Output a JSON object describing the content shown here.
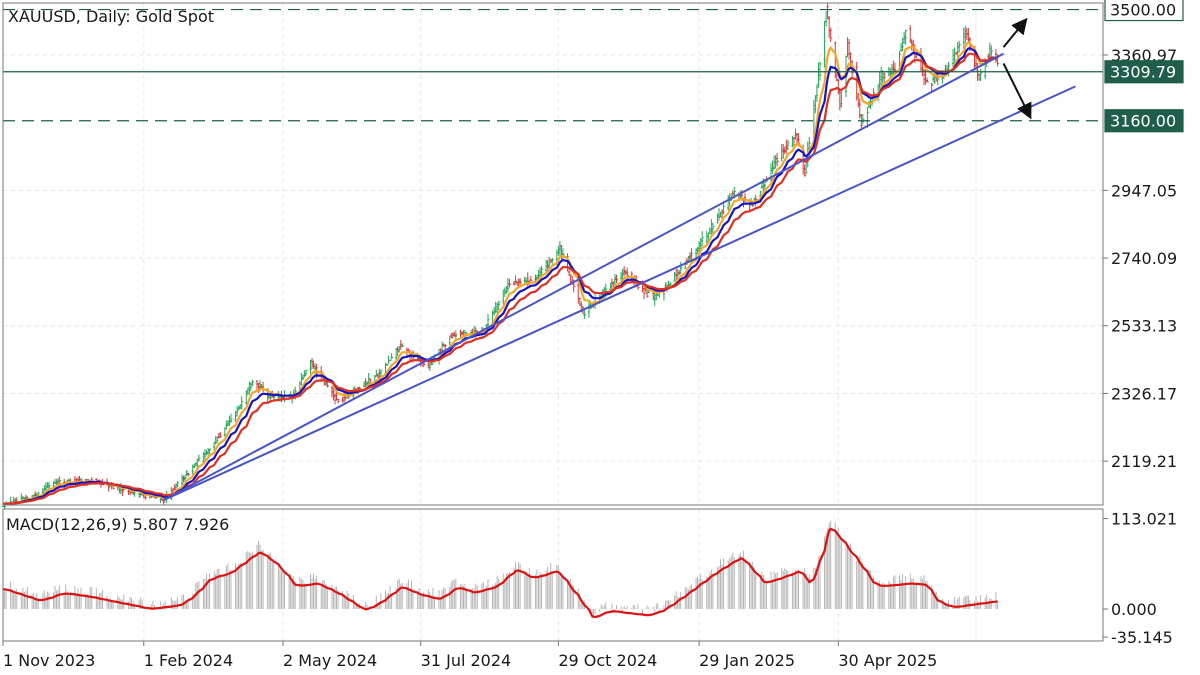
{
  "header": {
    "title": "XAUUSD, Daily:  Gold Spot"
  },
  "colors": {
    "bull": "#26a65b",
    "bear": "#d43c3c",
    "ema_fast": "#f5a623",
    "ema_mid": "#1515c8",
    "ema_slow": "#e03020",
    "trend": "#4a55c8",
    "level": "#1e5e4a",
    "macd_line": "#dd1111",
    "hist": "#b5b5b5",
    "grid": "#e6e6e6"
  },
  "chart_data": [
    {
      "type": "candlestick",
      "title": "XAUUSD, Daily:  Gold Spot",
      "ylim": [
        1985,
        3520
      ],
      "y_ticks": [
        "3360.97",
        "2947.05",
        "2740.09",
        "2533.13",
        "2326.17",
        "2119.21"
      ],
      "x_ticks": [
        "1 Nov 2023",
        "1 Feb 2024",
        "2 May 2024",
        "31 Jul 2024",
        "29 Oct 2024",
        "29 Jan 2025",
        "30 Apr 2025"
      ],
      "x_range": [
        "2023-11-01",
        "2025-10-20"
      ],
      "price_anchors": [
        [
          "2023-11-01",
          1985
        ],
        [
          "2023-11-20",
          2010
        ],
        [
          "2023-12-04",
          2055
        ],
        [
          "2023-12-28",
          2060
        ],
        [
          "2024-01-20",
          2030
        ],
        [
          "2024-02-14",
          2000
        ],
        [
          "2024-03-01",
          2085
        ],
        [
          "2024-03-15",
          2160
        ],
        [
          "2024-04-01",
          2265
        ],
        [
          "2024-04-12",
          2370
        ],
        [
          "2024-04-22",
          2320
        ],
        [
          "2024-05-08",
          2315
        ],
        [
          "2024-05-20",
          2420
        ],
        [
          "2024-06-07",
          2300
        ],
        [
          "2024-06-20",
          2345
        ],
        [
          "2024-07-05",
          2390
        ],
        [
          "2024-07-17",
          2470
        ],
        [
          "2024-08-05",
          2410
        ],
        [
          "2024-08-20",
          2505
        ],
        [
          "2024-09-10",
          2520
        ],
        [
          "2024-09-26",
          2660
        ],
        [
          "2024-10-15",
          2680
        ],
        [
          "2024-10-30",
          2770
        ],
        [
          "2024-11-14",
          2570
        ],
        [
          "2024-11-25",
          2625
        ],
        [
          "2024-12-10",
          2700
        ],
        [
          "2024-12-30",
          2615
        ],
        [
          "2025-01-15",
          2695
        ],
        [
          "2025-02-01",
          2800
        ],
        [
          "2025-02-20",
          2940
        ],
        [
          "2025-03-05",
          2905
        ],
        [
          "2025-03-20",
          3040
        ],
        [
          "2025-04-02",
          3120
        ],
        [
          "2025-04-08",
          3000
        ],
        [
          "2025-04-15",
          3230
        ],
        [
          "2025-04-22",
          3500
        ],
        [
          "2025-05-01",
          3210
        ],
        [
          "2025-05-06",
          3400
        ],
        [
          "2025-05-15",
          3150
        ],
        [
          "2025-05-28",
          3300
        ],
        [
          "2025-06-06",
          3320
        ],
        [
          "2025-06-13",
          3440
        ],
        [
          "2025-06-27",
          3270
        ],
        [
          "2025-07-09",
          3310
        ],
        [
          "2025-07-22",
          3430
        ],
        [
          "2025-07-31",
          3290
        ],
        [
          "2025-08-07",
          3375
        ],
        [
          "2025-08-12",
          3345
        ]
      ],
      "ema_periods": [
        8,
        13,
        21
      ],
      "levels": [
        3500.0,
        3309.79,
        3160.0
      ],
      "level_labels": [
        "3500.00",
        "3309.79",
        "3160.00"
      ],
      "trendlines": [
        {
          "from": [
            "2024-02-14",
            2000
          ],
          "to": [
            "2025-08-16",
            3365
          ]
        },
        {
          "from": [
            "2024-02-14",
            2000
          ],
          "to": [
            "2025-10-02",
            3265
          ]
        }
      ],
      "arrows": [
        {
          "from": [
            "2025-08-16",
            3385
          ],
          "to": [
            "2025-08-30",
            3465
          ]
        },
        {
          "from": [
            "2025-08-16",
            3335
          ],
          "to": [
            "2025-09-02",
            3175
          ]
        }
      ]
    },
    {
      "type": "macd",
      "label": "MACD(12,26,9) 5.807 7.926",
      "ylim": [
        -40,
        125
      ],
      "y_ticks": [
        "113.021",
        "0.000",
        "-35.145"
      ],
      "signal_anchors": [
        [
          "2023-11-01",
          25
        ],
        [
          "2023-11-25",
          10
        ],
        [
          "2023-12-10",
          20
        ],
        [
          "2023-12-28",
          15
        ],
        [
          "2024-01-15",
          8
        ],
        [
          "2024-02-05",
          0
        ],
        [
          "2024-02-25",
          5
        ],
        [
          "2024-03-05",
          18
        ],
        [
          "2024-03-15",
          38
        ],
        [
          "2024-03-28",
          45
        ],
        [
          "2024-04-16",
          72
        ],
        [
          "2024-04-28",
          55
        ],
        [
          "2024-05-10",
          28
        ],
        [
          "2024-05-24",
          32
        ],
        [
          "2024-06-08",
          18
        ],
        [
          "2024-06-24",
          -2
        ],
        [
          "2024-07-04",
          8
        ],
        [
          "2024-07-18",
          28
        ],
        [
          "2024-07-30",
          18
        ],
        [
          "2024-08-12",
          12
        ],
        [
          "2024-08-24",
          28
        ],
        [
          "2024-09-03",
          20
        ],
        [
          "2024-09-18",
          28
        ],
        [
          "2024-10-01",
          50
        ],
        [
          "2024-10-12",
          38
        ],
        [
          "2024-10-28",
          48
        ],
        [
          "2024-11-14",
          5
        ],
        [
          "2024-11-20",
          -12
        ],
        [
          "2024-12-01",
          -2
        ],
        [
          "2024-12-12",
          -5
        ],
        [
          "2024-12-26",
          -8
        ],
        [
          "2025-01-05",
          -2
        ],
        [
          "2025-01-20",
          18
        ],
        [
          "2025-02-08",
          45
        ],
        [
          "2025-02-25",
          65
        ],
        [
          "2025-03-12",
          32
        ],
        [
          "2025-03-22",
          38
        ],
        [
          "2025-04-05",
          48
        ],
        [
          "2025-04-12",
          28
        ],
        [
          "2025-04-24",
          105
        ],
        [
          "2025-05-04",
          80
        ],
        [
          "2025-05-14",
          55
        ],
        [
          "2025-05-24",
          28
        ],
        [
          "2025-06-06",
          30
        ],
        [
          "2025-06-16",
          32
        ],
        [
          "2025-06-26",
          30
        ],
        [
          "2025-07-04",
          8
        ],
        [
          "2025-07-14",
          2
        ],
        [
          "2025-07-24",
          5
        ],
        [
          "2025-08-05",
          8
        ],
        [
          "2025-08-12",
          10
        ]
      ]
    }
  ]
}
